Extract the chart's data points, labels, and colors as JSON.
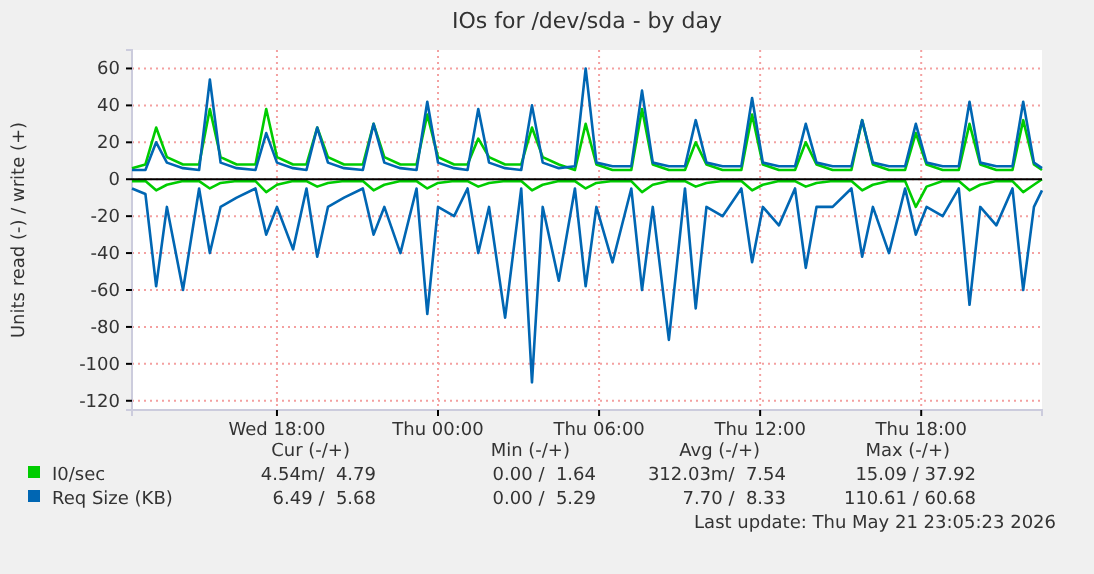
{
  "chart_data": {
    "type": "line",
    "title": "IOs for /dev/sda - by day",
    "ylabel": "Units read (-) / write (+)",
    "x": [
      "2026-05-20T12:36",
      "2026-05-20T13:06",
      "2026-05-20T13:30",
      "2026-05-20T13:54",
      "2026-05-20T14:30",
      "2026-05-20T15:06",
      "2026-05-20T15:30",
      "2026-05-20T15:54",
      "2026-05-20T16:30",
      "2026-05-20T17:12",
      "2026-05-20T17:36",
      "2026-05-20T18:00",
      "2026-05-20T18:36",
      "2026-05-20T19:06",
      "2026-05-20T19:30",
      "2026-05-20T19:54",
      "2026-05-20T20:30",
      "2026-05-20T21:12",
      "2026-05-20T21:36",
      "2026-05-20T22:00",
      "2026-05-20T22:36",
      "2026-05-20T23:12",
      "2026-05-20T23:36",
      "2026-05-21T00:00",
      "2026-05-21T00:36",
      "2026-05-21T01:06",
      "2026-05-21T01:30",
      "2026-05-21T01:54",
      "2026-05-21T02:30",
      "2026-05-21T03:06",
      "2026-05-21T03:30",
      "2026-05-21T03:54",
      "2026-05-21T04:30",
      "2026-05-21T05:06",
      "2026-05-21T05:30",
      "2026-05-21T05:54",
      "2026-05-21T06:30",
      "2026-05-21T07:12",
      "2026-05-21T07:36",
      "2026-05-21T08:00",
      "2026-05-21T08:36",
      "2026-05-21T09:12",
      "2026-05-21T09:36",
      "2026-05-21T10:00",
      "2026-05-21T10:36",
      "2026-05-21T11:18",
      "2026-05-21T11:42",
      "2026-05-21T12:06",
      "2026-05-21T12:42",
      "2026-05-21T13:18",
      "2026-05-21T13:42",
      "2026-05-21T14:06",
      "2026-05-21T14:42",
      "2026-05-21T15:24",
      "2026-05-21T15:48",
      "2026-05-21T16:12",
      "2026-05-21T16:48",
      "2026-05-21T17:24",
      "2026-05-21T17:48",
      "2026-05-21T18:12",
      "2026-05-21T18:48",
      "2026-05-21T19:24",
      "2026-05-21T19:48",
      "2026-05-21T20:12",
      "2026-05-21T20:48",
      "2026-05-21T21:24",
      "2026-05-21T21:48",
      "2026-05-21T22:12",
      "2026-05-21T22:30"
    ],
    "series": [
      {
        "color": "#00cc00",
        "values": [
          -1,
          -1,
          -6,
          -3,
          -1,
          -1,
          -5,
          -2,
          -1,
          -1,
          -7,
          -3,
          -1,
          -1,
          -4,
          -2,
          -1,
          -1,
          -6,
          -3,
          -1,
          -1,
          -5,
          -2,
          -1,
          -1,
          -4,
          -2,
          -1,
          -1,
          -6,
          -3,
          -1,
          -1,
          -5,
          -2,
          -1,
          -1,
          -7,
          -3,
          -1,
          -1,
          -4,
          -2,
          -1,
          -1,
          -6,
          -3,
          -1,
          -1,
          -4,
          -2,
          -1,
          -1,
          -6,
          -3,
          -1,
          -1,
          -15,
          -4,
          -1,
          -1,
          -6,
          -3,
          -1,
          -1,
          -7,
          -3,
          0
        ]
      },
      {
        "color": "#0066b3",
        "values": [
          -5,
          -8,
          -58,
          -15,
          -60,
          -5,
          -40,
          -15,
          -10,
          -5,
          -30,
          -15,
          -38,
          -5,
          -42,
          -15,
          -10,
          -5,
          -30,
          -15,
          -40,
          -5,
          -73,
          -15,
          -20,
          -5,
          -40,
          -15,
          -75,
          -5,
          -110,
          -15,
          -55,
          -5,
          -58,
          -15,
          -45,
          -5,
          -60,
          -15,
          -87,
          -5,
          -70,
          -15,
          -20,
          -5,
          -45,
          -15,
          -25,
          -5,
          -48,
          -15,
          -15,
          -5,
          -42,
          -15,
          -40,
          -5,
          -30,
          -15,
          -20,
          -5,
          -68,
          -15,
          -25,
          -5,
          -60,
          -15,
          -6
        ]
      },
      {
        "name": "I0/sec",
        "color": "#00cc00",
        "values": [
          6,
          8,
          28,
          12,
          8,
          8,
          38,
          12,
          8,
          8,
          38,
          12,
          8,
          8,
          28,
          12,
          8,
          8,
          30,
          12,
          8,
          8,
          35,
          12,
          8,
          8,
          22,
          12,
          8,
          8,
          28,
          12,
          8,
          5,
          30,
          8,
          5,
          5,
          38,
          8,
          5,
          5,
          20,
          8,
          5,
          5,
          35,
          8,
          5,
          5,
          20,
          8,
          5,
          5,
          32,
          8,
          5,
          5,
          25,
          8,
          5,
          5,
          30,
          8,
          5,
          5,
          32,
          8,
          5
        ]
      },
      {
        "name": "Req Size (KB)",
        "color": "#0066b3",
        "values": [
          5,
          5,
          20,
          9,
          6,
          5,
          54,
          9,
          6,
          5,
          25,
          9,
          6,
          5,
          28,
          9,
          6,
          5,
          30,
          9,
          6,
          5,
          42,
          9,
          6,
          5,
          38,
          9,
          6,
          5,
          40,
          9,
          6,
          7,
          60,
          9,
          7,
          7,
          48,
          9,
          7,
          7,
          32,
          9,
          7,
          7,
          44,
          9,
          7,
          7,
          30,
          9,
          7,
          7,
          32,
          9,
          7,
          7,
          30,
          9,
          7,
          7,
          42,
          9,
          7,
          7,
          42,
          9,
          6
        ]
      }
    ],
    "xlim": [
      "2026-05-20T12:36",
      "2026-05-21T22:30"
    ],
    "ylim": [
      -125,
      70
    ],
    "xticks": [
      {
        "value": "2026-05-20T18:00",
        "label": "Wed 18:00"
      },
      {
        "value": "2026-05-21T00:00",
        "label": "Thu 00:00"
      },
      {
        "value": "2026-05-21T06:00",
        "label": "Thu 06:00"
      },
      {
        "value": "2026-05-21T12:00",
        "label": "Thu 12:00"
      },
      {
        "value": "2026-05-21T18:00",
        "label": "Thu 18:00"
      }
    ],
    "yticks": [
      -120,
      -100,
      -80,
      -60,
      -40,
      -20,
      0,
      20,
      40,
      60
    ],
    "grid": true,
    "legend": "bottom",
    "annotations": [
      "Cur (-/+)",
      "Min (-/+)",
      "Avg (-/+)",
      "Max (-/+)",
      "4.54m/  4.79",
      "0.00 /  1.64",
      "312.03m/  7.54",
      "15.09 / 37.92",
      "6.49 /  5.68",
      "0.00 /  5.29",
      "7.70 /  8.33",
      "110.61 / 60.68",
      "Last update: Thu May 21 23:05:23 2026"
    ]
  }
}
